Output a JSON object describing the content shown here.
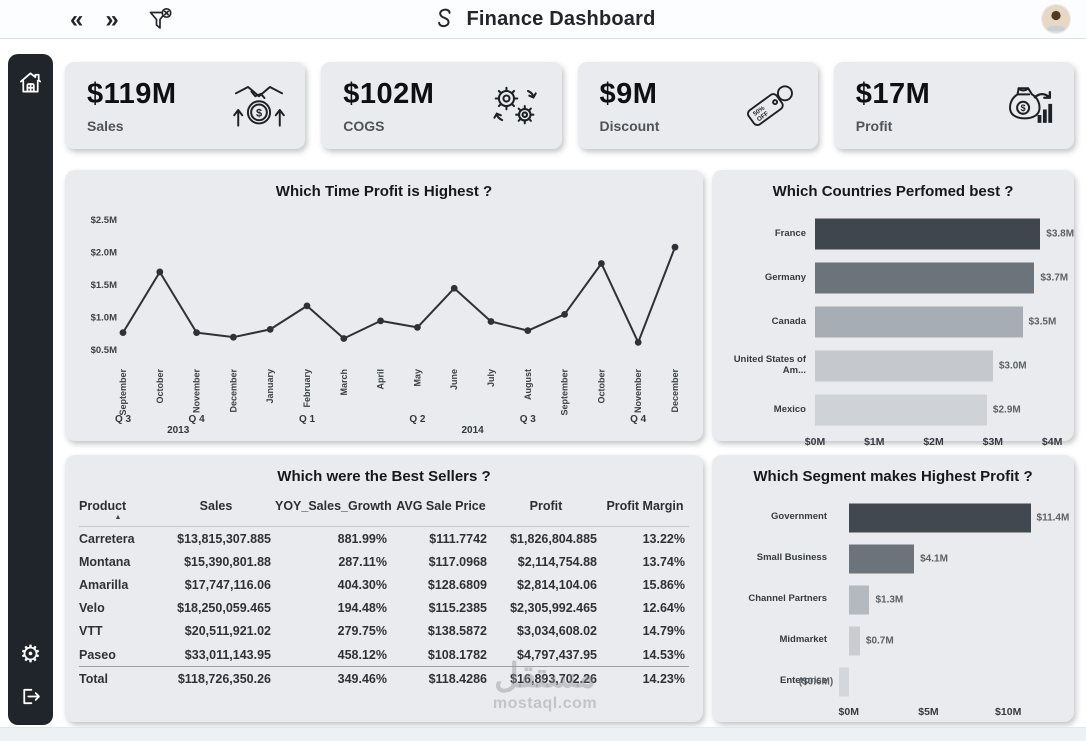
{
  "header": {
    "title": "Finance Dashboard",
    "collapse_left_glyph": "«",
    "collapse_right_glyph": "»",
    "icons": [
      "double-chevron-left",
      "double-chevron-right",
      "clear-filter-icon",
      "app-logo-icon",
      "avatar"
    ]
  },
  "sidebar": {
    "icons": [
      "home-icon",
      "settings-icon",
      "logout-icon"
    ],
    "settings_glyph": "⚙"
  },
  "kpis": [
    {
      "value": "$119M",
      "label": "Sales",
      "icon": "handshake-dollar-icon"
    },
    {
      "value": "$102M",
      "label": "COGS",
      "icon": "cogs-icon"
    },
    {
      "value": "$9M",
      "label": "Discount",
      "icon": "discount-tag-icon",
      "icon_text_lines": [
        "50%",
        "OFF"
      ]
    },
    {
      "value": "$17M",
      "label": "Profit",
      "icon": "money-bag-chart-icon"
    }
  ],
  "chart_data": [
    {
      "type": "line",
      "title": "Which Time Profit is Highest ?",
      "x": [
        "September",
        "October",
        "November",
        "December",
        "January",
        "February",
        "March",
        "April",
        "May",
        "June",
        "July",
        "August",
        "September",
        "October",
        "November",
        "December"
      ],
      "values_m": [
        0.77,
        1.7,
        0.77,
        0.7,
        0.82,
        1.18,
        0.68,
        0.95,
        0.85,
        1.45,
        0.94,
        0.8,
        1.05,
        1.83,
        0.62,
        2.08
      ],
      "y_ticks": [
        {
          "v": 0.5,
          "label": "$0.5M"
        },
        {
          "v": 1.0,
          "label": "$1.0M"
        },
        {
          "v": 1.5,
          "label": "$1.5M"
        },
        {
          "v": 2.0,
          "label": "$2.0M"
        },
        {
          "v": 2.5,
          "label": "$2.5M"
        }
      ],
      "quarters": [
        {
          "label": "Q 3",
          "index": 0
        },
        {
          "label": "Q 4",
          "index": 2
        },
        {
          "label": "Q 1",
          "index": 5
        },
        {
          "label": "Q 2",
          "index": 8
        },
        {
          "label": "Q 3",
          "index": 11
        },
        {
          "label": "Q 4",
          "index": 14
        }
      ],
      "years": [
        {
          "label": "2013",
          "at_index": 1.5
        },
        {
          "label": "2014",
          "at_index": 9.5
        }
      ],
      "ylim": [
        0.35,
        2.65
      ],
      "line_color": "#2e3238",
      "grid": false
    },
    {
      "type": "bar",
      "title": "Which Countries Perfomed best ?",
      "orientation": "horizontal",
      "categories": [
        "France",
        "Germany",
        "Canada",
        "United States of Am...",
        "Mexico"
      ],
      "values_m": [
        3.8,
        3.7,
        3.5,
        3.0,
        2.9
      ],
      "labels": [
        "$3.8M",
        "$3.7M",
        "$3.5M",
        "$3.0M",
        "$2.9M"
      ],
      "x_ticks": [
        {
          "v": 0,
          "label": "$0M"
        },
        {
          "v": 1,
          "label": "$1M"
        },
        {
          "v": 2,
          "label": "$2M"
        },
        {
          "v": 3,
          "label": "$3M"
        },
        {
          "v": 4,
          "label": "$4M"
        }
      ],
      "xlim": [
        0,
        4.2
      ],
      "bar_colors": [
        "#40464e",
        "#6d737a",
        "#a7adb4",
        "#c5c9ce",
        "#cfd3d7"
      ]
    },
    {
      "type": "table",
      "title": "Which were the Best Sellers ?",
      "columns": [
        "Product",
        "Sales",
        "YOY_Sales_Growth",
        "AVG Sale Price",
        "Profit",
        "Profit Margin"
      ],
      "sort_column_index": 0,
      "sort_indicator": "▲",
      "rows": [
        [
          "Carretera",
          "$13,815,307.885",
          "881.99%",
          "$111.7742",
          "$1,826,804.885",
          "13.22%"
        ],
        [
          "Montana",
          "$15,390,801.88",
          "287.11%",
          "$117.0968",
          "$2,114,754.88",
          "13.74%"
        ],
        [
          "Amarilla",
          "$17,747,116.06",
          "404.30%",
          "$128.6809",
          "$2,814,104.06",
          "15.86%"
        ],
        [
          "Velo",
          "$18,250,059.465",
          "194.48%",
          "$115.2385",
          "$2,305,992.465",
          "12.64%"
        ],
        [
          "VTT",
          "$20,511,921.02",
          "279.75%",
          "$138.5872",
          "$3,034,608.02",
          "14.79%"
        ],
        [
          "Paseo",
          "$33,011,143.95",
          "458.12%",
          "$108.1782",
          "$4,797,437.95",
          "14.53%"
        ]
      ],
      "total_row": [
        "Total",
        "$118,726,350.26",
        "349.46%",
        "$118.4286",
        "$16,893,702.26",
        "14.23%"
      ]
    },
    {
      "type": "bar",
      "title": "Which Segment makes Highest Profit ?",
      "orientation": "horizontal",
      "categories": [
        "Government",
        "Small Business",
        "Channel Partners",
        "Midmarket",
        "Enterprise"
      ],
      "values_m": [
        11.4,
        4.1,
        1.3,
        0.7,
        -0.6
      ],
      "labels": [
        "$11.4M",
        "$4.1M",
        "$1.3M",
        "$0.7M",
        "($0.6M)"
      ],
      "x_ticks": [
        {
          "v": 0,
          "label": "$0M"
        },
        {
          "v": 5,
          "label": "$5M"
        },
        {
          "v": 10,
          "label": "$10M"
        }
      ],
      "xlim": [
        -0.8,
        13.5
      ],
      "bar_colors": [
        "#42484f",
        "#6d737a",
        "#b4b9bf",
        "#c9cdd2",
        "#d3d6da"
      ]
    }
  ],
  "watermark": {
    "arabic": "مستقل",
    "latin": "mostaql.com"
  },
  "colors": {
    "sidebar": "#20252c",
    "panel": "#e9ebee",
    "line": "#2e3238",
    "title_text": "#15181d",
    "kpi_value": "#0d0f12",
    "kpi_label": "#4e545b"
  }
}
